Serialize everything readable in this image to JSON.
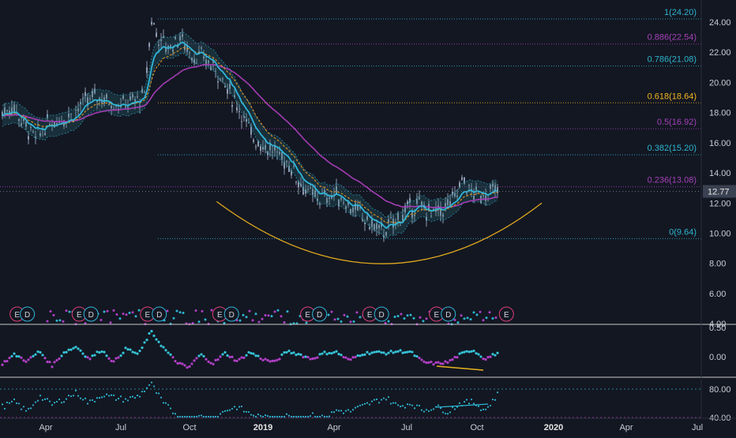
{
  "colors": {
    "background": "#131722",
    "candle": "#8e9bb1",
    "ema_fast": "#2fb6d9",
    "ema_slow": "#d38b22",
    "ma_long": "#a43cb4",
    "band": "#2a6f7a",
    "fib_cyan": "#2db5cf",
    "fib_magenta": "#a541b8",
    "fib_gold": "#f0b51e",
    "arc": "#e0a81e",
    "price_tag_bg": "#3a4150",
    "panel_divider": "#c8c8c8",
    "earnings": "#e0407a",
    "dividends": "#2fb6d9",
    "osc_cyan": "#35c3d6",
    "osc_magenta": "#b13fc6",
    "divergence": "#e8b31e"
  },
  "chart_data": [
    {
      "type": "candlestick",
      "panel": "price",
      "y_axis": {
        "min": 4.0,
        "max": 24.0,
        "ticks": [
          "24.00",
          "22.00",
          "20.00",
          "18.00",
          "16.00",
          "14.00",
          "12.00",
          "10.00",
          "8.00",
          "6.00",
          "4.00"
        ]
      },
      "x_axis": {
        "ticks": [
          "Apr",
          "Jul",
          "Oct",
          "2019",
          "Apr",
          "Jul",
          "Oct",
          "2020",
          "Apr",
          "Jul"
        ]
      },
      "ohlc_path": [
        [
          "2018-02-01",
          18.0
        ],
        [
          "2018-02-15",
          18.4
        ],
        [
          "2018-03-01",
          17.2
        ],
        [
          "2018-03-15",
          16.3
        ],
        [
          "2018-04-01",
          17.3
        ],
        [
          "2018-04-15",
          17.6
        ],
        [
          "2018-05-01",
          17.9
        ],
        [
          "2018-05-15",
          18.6
        ],
        [
          "2018-06-01",
          19.1
        ],
        [
          "2018-06-15",
          18.8
        ],
        [
          "2018-07-01",
          18.5
        ],
        [
          "2018-07-15",
          18.7
        ],
        [
          "2018-08-01",
          19.0
        ],
        [
          "2018-08-10",
          24.2
        ],
        [
          "2018-08-20",
          22.8
        ],
        [
          "2018-09-01",
          22.3
        ],
        [
          "2018-09-15",
          23.0
        ],
        [
          "2018-10-01",
          21.8
        ],
        [
          "2018-10-15",
          21.6
        ],
        [
          "2018-11-01",
          20.8
        ],
        [
          "2018-11-15",
          19.5
        ],
        [
          "2018-12-01",
          18.2
        ],
        [
          "2018-12-15",
          16.5
        ],
        [
          "2019-01-01",
          15.8
        ],
        [
          "2019-01-15",
          15.3
        ],
        [
          "2019-02-01",
          14.6
        ],
        [
          "2019-02-15",
          13.4
        ],
        [
          "2019-03-01",
          12.5
        ],
        [
          "2019-03-15",
          12.3
        ],
        [
          "2019-04-01",
          12.6
        ],
        [
          "2019-04-15",
          12.0
        ],
        [
          "2019-05-01",
          11.3
        ],
        [
          "2019-05-15",
          10.6
        ],
        [
          "2019-06-01",
          10.1
        ],
        [
          "2019-06-15",
          10.7
        ],
        [
          "2019-07-01",
          11.5
        ],
        [
          "2019-07-15",
          11.9
        ],
        [
          "2019-08-01",
          11.3
        ],
        [
          "2019-08-15",
          11.5
        ],
        [
          "2019-09-01",
          12.4
        ],
        [
          "2019-09-10",
          13.6
        ],
        [
          "2019-09-20",
          12.7
        ],
        [
          "2019-10-01",
          12.5
        ],
        [
          "2019-10-15",
          12.77
        ]
      ],
      "last_price": "12.77",
      "fibonacci_levels": [
        {
          "ratio": "1",
          "price": 24.2,
          "label": "1(24.20)",
          "color": "fib_cyan"
        },
        {
          "ratio": "0.886",
          "price": 22.54,
          "label": "0.886(22.54)",
          "color": "fib_magenta"
        },
        {
          "ratio": "0.786",
          "price": 21.08,
          "label": "0.786(21.08)",
          "color": "fib_cyan"
        },
        {
          "ratio": "0.618",
          "price": 18.64,
          "label": "0.618(18.64)",
          "color": "fib_gold"
        },
        {
          "ratio": "0.5",
          "price": 16.92,
          "label": "0.5(16.92)",
          "color": "fib_magenta"
        },
        {
          "ratio": "0.382",
          "price": 15.2,
          "label": "0.382(15.20)",
          "color": "fib_cyan"
        },
        {
          "ratio": "0.236",
          "price": 13.08,
          "label": "0.236(13.08)",
          "color": "fib_magenta"
        },
        {
          "ratio": "0",
          "price": 9.64,
          "label": "0(9.64)",
          "color": "fib_cyan"
        }
      ],
      "arc": {
        "start": [
          "2018-11-01",
          12.1
        ],
        "bottom": [
          "2019-06-01",
          8.0
        ],
        "end": [
          "2019-12-20",
          12.0
        ]
      },
      "event_markers": [
        {
          "date": "2018-02-20",
          "label": "E"
        },
        {
          "date": "2018-03-05",
          "label": "D"
        },
        {
          "date": "2018-05-10",
          "label": "E"
        },
        {
          "date": "2018-05-25",
          "label": "D"
        },
        {
          "date": "2018-08-05",
          "label": "E"
        },
        {
          "date": "2018-08-20",
          "label": "D"
        },
        {
          "date": "2018-11-05",
          "label": "E"
        },
        {
          "date": "2018-11-20",
          "label": "D"
        },
        {
          "date": "2019-02-25",
          "label": "E"
        },
        {
          "date": "2019-03-12",
          "label": "D"
        },
        {
          "date": "2019-05-15",
          "label": "E"
        },
        {
          "date": "2019-05-30",
          "label": "D"
        },
        {
          "date": "2019-08-08",
          "label": "E"
        },
        {
          "date": "2019-08-23",
          "label": "D"
        },
        {
          "date": "2019-11-05",
          "label": "E"
        }
      ]
    },
    {
      "type": "line",
      "panel": "oscillator_1",
      "y_axis": {
        "ticks": [
          "0.50",
          "0.00"
        ]
      },
      "series_values": [
        -0.15,
        0.05,
        -0.1,
        0.12,
        -0.2,
        0.1,
        0.22,
        -0.05,
        0.15,
        -0.12,
        0.18,
        0.05,
        0.55,
        0.2,
        -0.1,
        -0.25,
        0.05,
        -0.15,
        0.08,
        -0.1,
        0.1,
        -0.05,
        -0.12,
        0.12,
        0.05,
        -0.05,
        0.08,
        0.1,
        -0.08,
        0.06,
        0.1,
        0.08,
        0.12,
        0.1,
        -0.12,
        -0.15,
        -0.12,
        0.05,
        0.15,
        -0.05,
        0.08
      ]
    },
    {
      "type": "line",
      "panel": "oscillator_2",
      "y_axis": {
        "ticks": [
          "80.00",
          "40.00"
        ]
      },
      "series_values": [
        55,
        62,
        48,
        70,
        58,
        66,
        75,
        60,
        72,
        68,
        65,
        70,
        88,
        60,
        45,
        30,
        42,
        35,
        50,
        55,
        45,
        40,
        38,
        42,
        35,
        45,
        38,
        50,
        48,
        55,
        62,
        68,
        55,
        60,
        50,
        55,
        48,
        60,
        62,
        50,
        72
      ]
    }
  ]
}
